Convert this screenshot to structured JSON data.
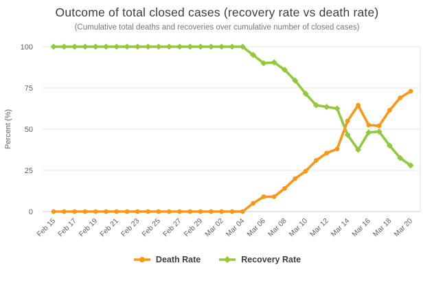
{
  "chart_data": {
    "type": "line",
    "title": "Outcome of total closed cases (recovery rate vs death rate)",
    "subtitle": "(Cumulative total deaths and recoveries over cumulative number of closed cases)",
    "ylabel": "Percent (%)",
    "ylim": [
      0,
      100
    ],
    "yticks": [
      0,
      25,
      50,
      75,
      100
    ],
    "grid": "horizontal",
    "legend_position": "bottom-center",
    "xtick_every": 2,
    "xtick_rotation": -45,
    "categories": [
      "Feb 15",
      "Feb 16",
      "Feb 17",
      "Feb 18",
      "Feb 19",
      "Feb 20",
      "Feb 21",
      "Feb 22",
      "Feb 23",
      "Feb 24",
      "Feb 25",
      "Feb 26",
      "Feb 27",
      "Feb 28",
      "Feb 29",
      "Mar 01",
      "Mar 02",
      "Mar 03",
      "Mar 04",
      "Mar 05",
      "Mar 06",
      "Mar 07",
      "Mar 08",
      "Mar 09",
      "Mar 10",
      "Mar 11",
      "Mar 12",
      "Mar 13",
      "Mar 14",
      "Mar 15",
      "Mar 16",
      "Mar 17",
      "Mar 18",
      "Mar 19",
      "Mar 20"
    ],
    "series": [
      {
        "name": "Death Rate",
        "color": "#fb9714",
        "marker": "circle",
        "values": [
          0,
          0,
          0,
          0,
          0,
          0,
          0,
          0,
          0,
          0,
          0,
          0,
          0,
          0,
          0,
          0,
          0,
          0,
          0,
          5,
          9,
          9,
          14,
          20,
          24.5,
          31,
          35.5,
          38,
          55,
          64.5,
          52.5,
          52,
          61.5,
          69,
          73
        ]
      },
      {
        "name": "Recovery Rate",
        "color": "#90c93a",
        "marker": "diamond",
        "values": [
          100,
          100,
          100,
          100,
          100,
          100,
          100,
          100,
          100,
          100,
          100,
          100,
          100,
          100,
          100,
          100,
          100,
          100,
          100,
          95,
          90,
          90.5,
          86,
          79.5,
          71.5,
          64.5,
          63.5,
          62.5,
          46.5,
          37.5,
          48,
          48.5,
          40,
          32.5,
          28
        ]
      }
    ],
    "colors": {
      "grid_line": "#e6e6e6",
      "zero_line": "#ccccd6",
      "tick_label": "#606060",
      "axis_title": "#606060",
      "title": "#3c3c3c",
      "subtitle": "#787878",
      "legend_text": "#3d3d3d",
      "background": "#ffffff"
    }
  }
}
